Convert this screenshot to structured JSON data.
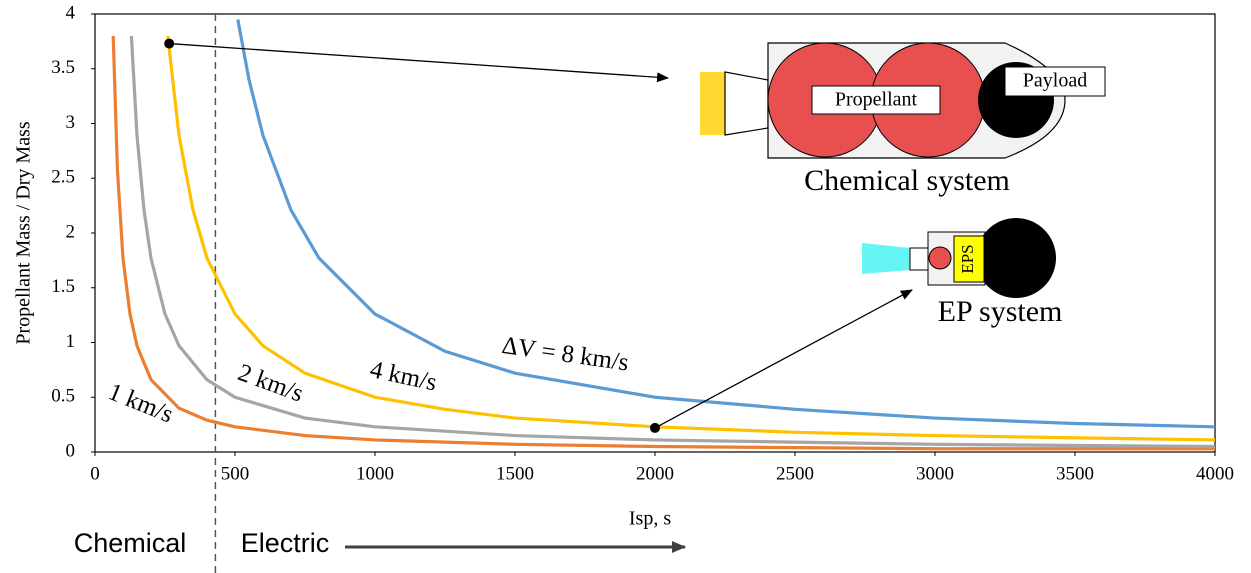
{
  "chart_data": {
    "type": "line",
    "y_label": "Propellant Mass / Dry Mass",
    "x_label": "Isp, s",
    "xlim": [
      0,
      4000
    ],
    "ylim": [
      0,
      4
    ],
    "xticks": [
      0,
      500,
      1000,
      1500,
      2000,
      2500,
      3000,
      3500,
      4000
    ],
    "yticks": [
      0,
      0.5,
      1,
      1.5,
      2,
      2.5,
      3,
      3.5,
      4
    ],
    "grid": false,
    "series": [
      {
        "name": "1 km/s",
        "color": "#ed7d31",
        "x": [
          65,
          80,
          100,
          125,
          150,
          200,
          300,
          400,
          500,
          750,
          1000,
          1500,
          2000,
          3000,
          4000
        ],
        "values": [
          3.8,
          2.58,
          1.77,
          1.26,
          0.97,
          0.66,
          0.4,
          0.29,
          0.23,
          0.15,
          0.11,
          0.07,
          0.05,
          0.03,
          0.03
        ]
      },
      {
        "name": "2 km/s",
        "color": "#a5a5a5",
        "x": [
          130,
          150,
          175,
          200,
          250,
          300,
          400,
          500,
          750,
          1000,
          1500,
          2000,
          3000,
          4000
        ],
        "values": [
          3.8,
          2.89,
          2.21,
          1.77,
          1.26,
          0.97,
          0.66,
          0.5,
          0.31,
          0.23,
          0.15,
          0.11,
          0.07,
          0.05
        ]
      },
      {
        "name": "4 km/s",
        "color": "#ffc000",
        "x": [
          260,
          300,
          350,
          400,
          500,
          600,
          750,
          1000,
          1250,
          1500,
          2000,
          2500,
          3000,
          4000
        ],
        "values": [
          3.8,
          2.89,
          2.21,
          1.77,
          1.26,
          0.97,
          0.72,
          0.5,
          0.39,
          0.31,
          0.23,
          0.18,
          0.15,
          0.11
        ]
      },
      {
        "name": "ΔV = 8 km/s",
        "color": "#5b9bd5",
        "x": [
          510,
          550,
          600,
          700,
          800,
          1000,
          1250,
          1500,
          2000,
          2500,
          3000,
          3500,
          4000
        ],
        "values": [
          3.95,
          3.4,
          2.89,
          2.21,
          1.77,
          1.26,
          0.92,
          0.72,
          0.5,
          0.39,
          0.31,
          0.26,
          0.23
        ]
      }
    ],
    "divider_x": 430,
    "markers": [
      {
        "x": 265,
        "y": 3.73
      },
      {
        "x": 2000,
        "y": 0.22
      }
    ],
    "annotations": {
      "chemical_label": "Chemical",
      "electric_label": "Electric",
      "propellant": "Propellant",
      "payload": "Payload",
      "chemical_system": "Chemical system",
      "eps": "EPS",
      "ep_system": "EP system"
    }
  }
}
